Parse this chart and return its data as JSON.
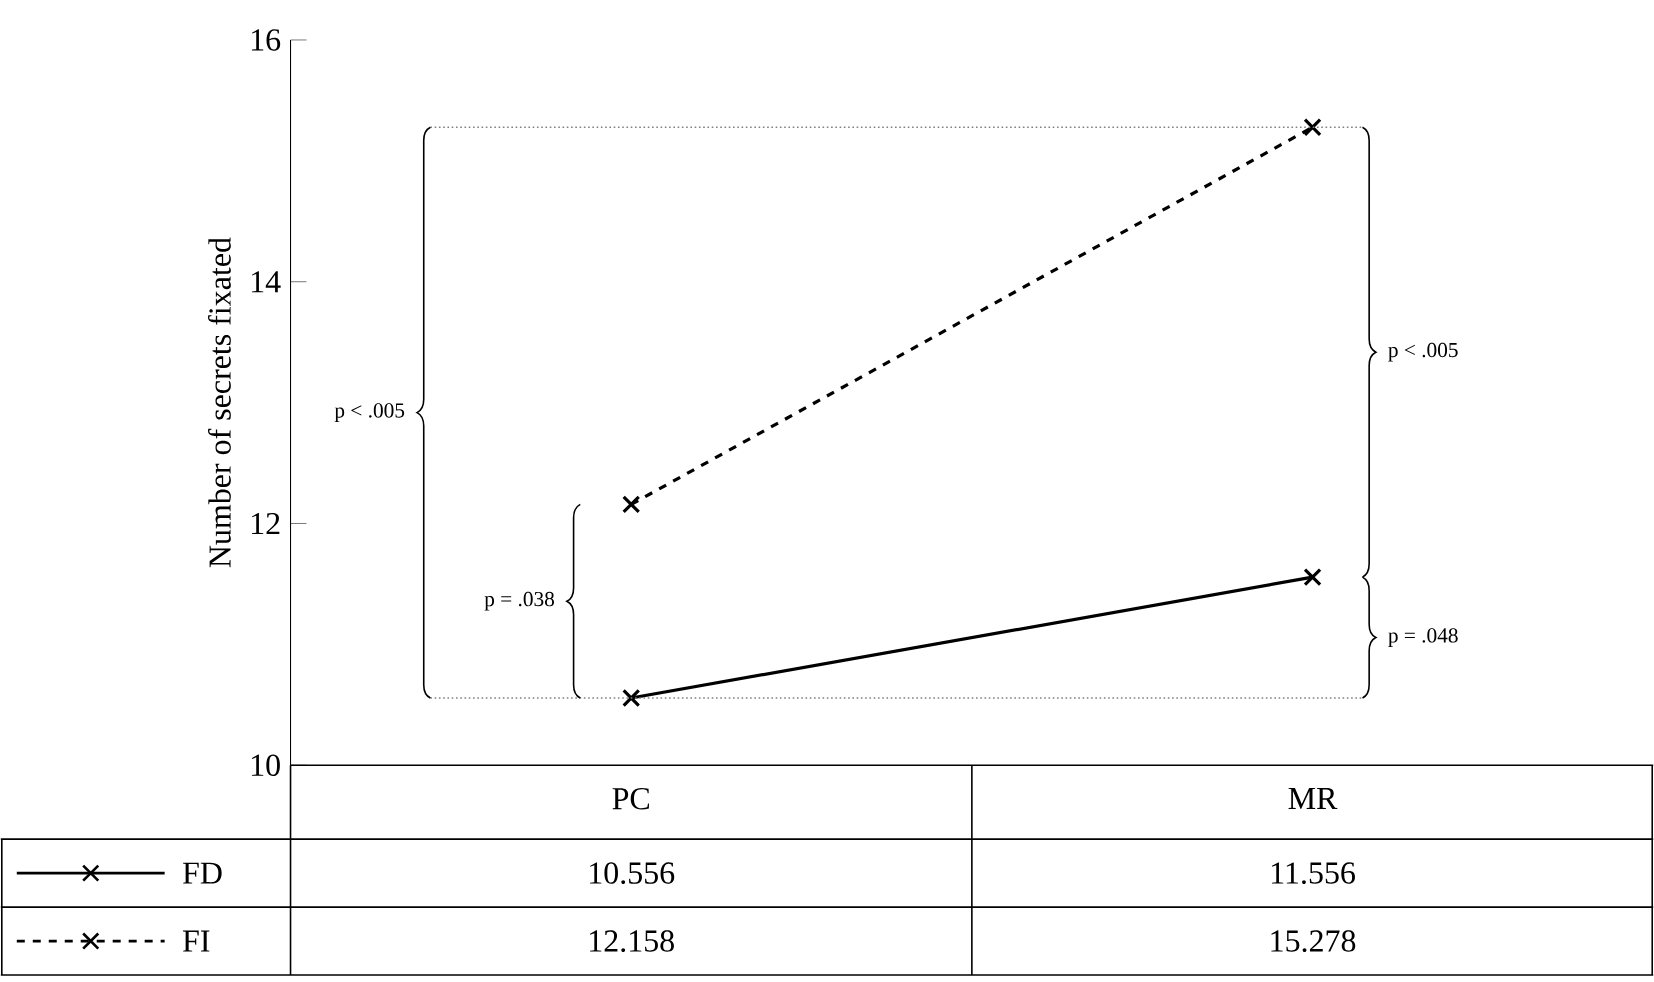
{
  "chart_data": {
    "type": "line",
    "ylabel": "Number of secrets fixated",
    "categories": [
      "PC",
      "MR"
    ],
    "series": [
      {
        "name": "FD",
        "color": "#000000",
        "values": [
          10.556,
          11.556
        ],
        "marker": "cross",
        "line_style": "solid"
      },
      {
        "name": "FI",
        "color": "#000000",
        "values": [
          12.158,
          15.278
        ],
        "marker": "cross",
        "line_style": "dashed"
      }
    ],
    "ref_lines": [
      {
        "axis": "y",
        "value": 10.556,
        "color": "#808080",
        "line_style": "dotted"
      },
      {
        "axis": "y",
        "value": 15.278,
        "color": "#808080",
        "line_style": "dotted"
      }
    ],
    "ylim": [
      10,
      16
    ],
    "yticks": [
      10,
      12,
      14,
      16
    ],
    "data_labels": true,
    "legend": "bottom",
    "annotations": [
      "p < .005",
      "p = .038",
      "p < .005",
      "p = .048"
    ]
  }
}
